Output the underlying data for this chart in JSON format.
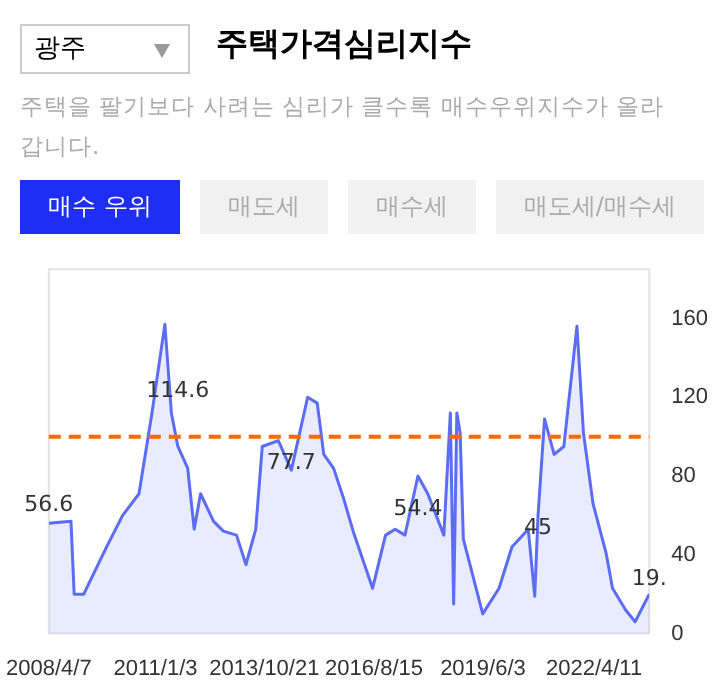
{
  "chart_data": {
    "type": "area",
    "title": "주택가격심리지수",
    "subtitle": "주택을 팔기보다 사려는 심리가 클수록 매수우위지수가 올라갑니다.",
    "annotations": [
      "광주",
      "매수 우위",
      "매도세",
      "매수세",
      "매도세/매수세",
      {
        "text": "56.6",
        "x": "2008-04-07",
        "y": 56.6
      },
      {
        "text": "114.6",
        "x": "2011-08",
        "y": 114.6
      },
      {
        "text": "77.7",
        "x": "2014-07",
        "y": 77.7
      },
      {
        "text": "54.4",
        "x": "2017-10",
        "y": 54.4
      },
      {
        "text": "45",
        "x": "2020-11",
        "y": 45
      },
      {
        "text": "19.",
        "x": "2023-09-11",
        "y": 19
      }
    ],
    "x": [
      "2008-04-07",
      "2008-11",
      "2008-12",
      "2009-03",
      "2009-10",
      "2010-03",
      "2010-08",
      "2010-12",
      "2011-04",
      "2011-06",
      "2011-08",
      "2011-11",
      "2012-01",
      "2012-03",
      "2012-07",
      "2012-10",
      "2013-02",
      "2013-05",
      "2013-08",
      "2013-10",
      "2014-03",
      "2014-07",
      "2014-12",
      "2015-03",
      "2015-05",
      "2015-08",
      "2015-11",
      "2016-02",
      "2016-08",
      "2016-12",
      "2017-03",
      "2017-06",
      "2017-10",
      "2018-01",
      "2018-06",
      "2018-08",
      "2018-09",
      "2018-10",
      "2018-11",
      "2018-12",
      "2019-06",
      "2019-11",
      "2020-03",
      "2020-08",
      "2020-10",
      "2020-11",
      "2021-01",
      "2021-04",
      "2021-07",
      "2021-11",
      "2022-01",
      "2022-04",
      "2022-08",
      "2022-10",
      "2023-02",
      "2023-05",
      "2023-09-11"
    ],
    "series": [
      {
        "color": "#5b6cf5",
        "values": [
          56,
          57,
          20,
          20,
          44,
          60,
          71,
          112,
          157,
          112,
          95,
          84,
          53,
          71,
          57,
          52,
          50,
          35,
          53,
          95,
          98,
          83,
          120,
          117,
          91,
          84,
          69,
          52,
          23,
          50,
          53,
          50,
          80,
          71,
          50,
          112,
          15,
          112,
          102,
          48,
          10,
          23,
          44,
          53,
          19,
          60,
          109,
          91,
          95,
          156,
          102,
          66,
          41,
          23,
          12,
          6,
          20
        ]
      }
    ],
    "xlim": [
      "2008-04-07",
      "2023-09-11"
    ],
    "xticks": [
      {
        "value": "2008-04-07",
        "label": "2008/4/7"
      },
      {
        "value": "2011-01-03",
        "label": "2011/1/3"
      },
      {
        "value": "2013-10-21",
        "label": "2013/10/21"
      },
      {
        "value": "2016-08-15",
        "label": "2016/8/15"
      },
      {
        "value": "2019-06-03",
        "label": "2019/6/3"
      },
      {
        "value": "2022-04-11",
        "label": "2022/4/11"
      }
    ],
    "ylim": [
      0,
      185
    ],
    "yticks": [
      0,
      40,
      80,
      120,
      160
    ],
    "ref_lines": [
      {
        "axis": "y",
        "value": 100,
        "color": "#ff6a00",
        "line_style": "dashed"
      }
    ],
    "grid": false,
    "legend": false
  }
}
